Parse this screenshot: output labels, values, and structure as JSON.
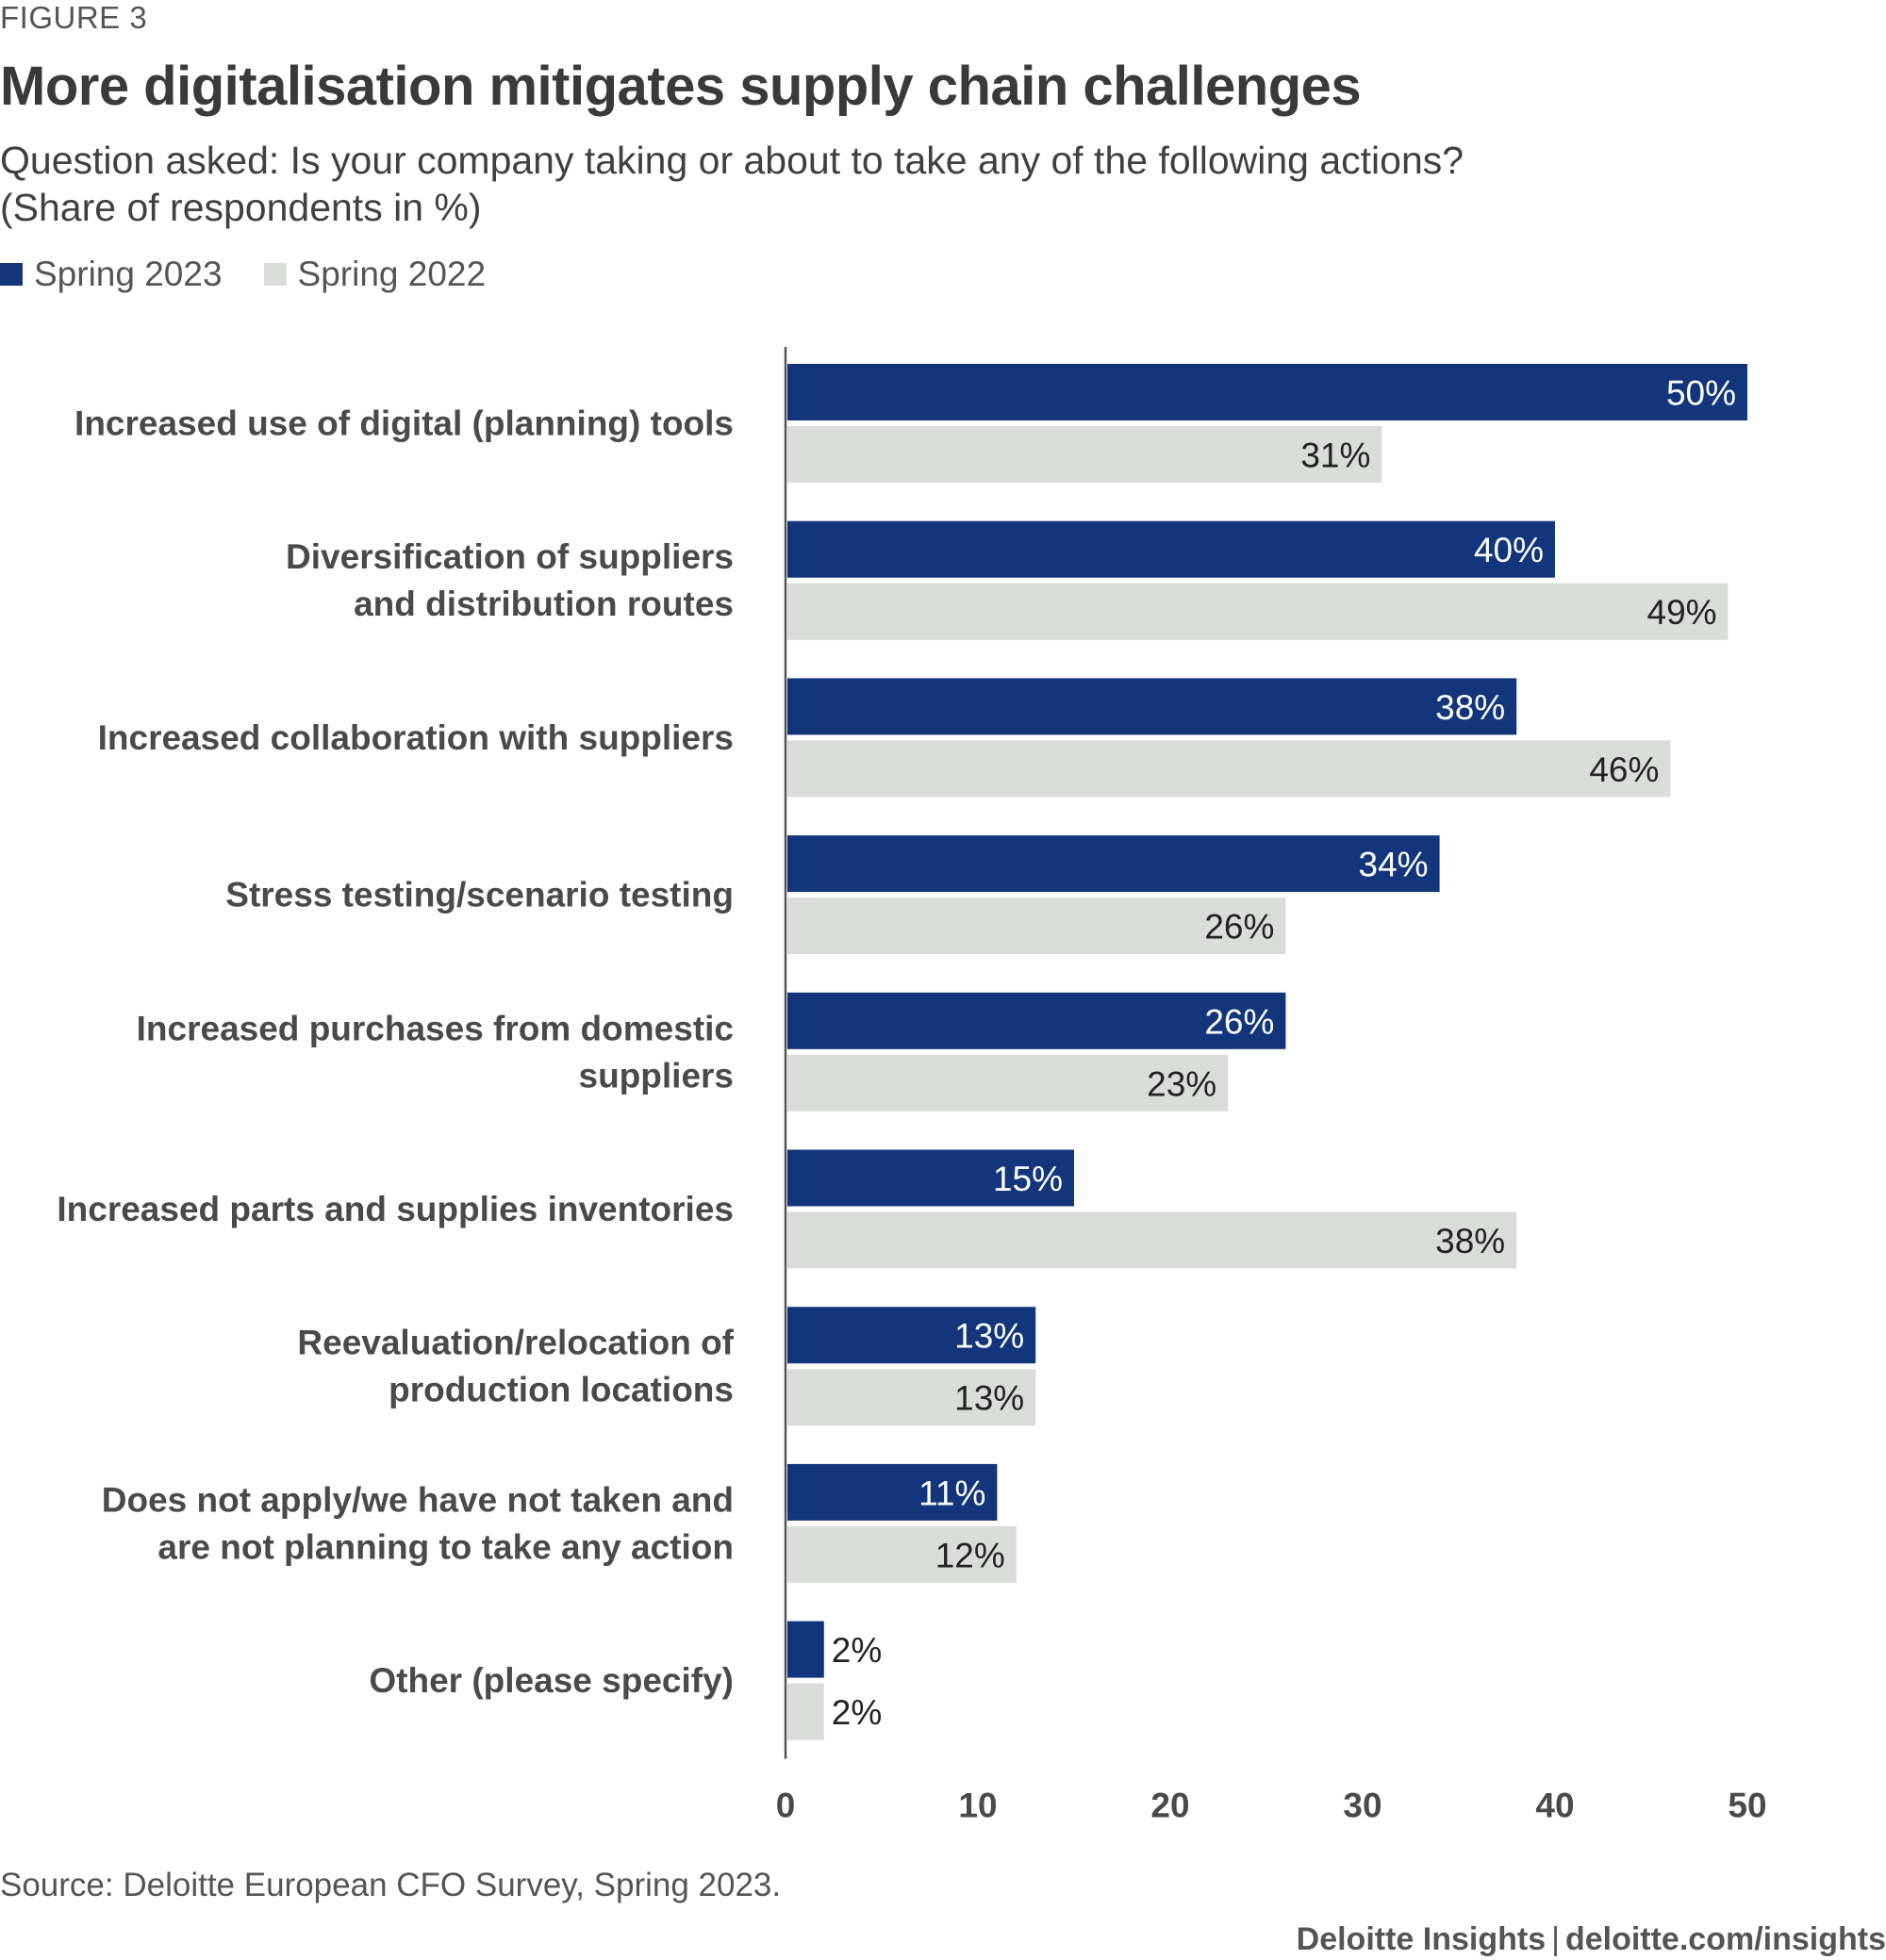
{
  "figure_label": "FIGURE 3",
  "title": "More digitalisation mitigates supply chain challenges",
  "subtitle_lines": [
    "Question asked: Is your company taking or about to take any of the following actions?",
    "(Share of respondents in %)"
  ],
  "colors": {
    "series_2023": "#13357b",
    "series_2022": "#d9dcd9",
    "axis": "#555555"
  },
  "source": "Source: Deloitte European CFO Survey, Spring 2023.",
  "credit": {
    "brand": "Deloitte Insights",
    "separator": "|",
    "url": "deloitte.com/insights"
  },
  "chart_data": {
    "type": "bar",
    "orientation": "horizontal",
    "categories": [
      [
        "Increased use of digital (planning) tools"
      ],
      [
        "Diversification of suppliers",
        "and distribution routes"
      ],
      [
        "Increased collaboration with suppliers"
      ],
      [
        "Stress testing/scenario testing"
      ],
      [
        "Increased purchases from domestic",
        "suppliers"
      ],
      [
        "Increased parts and supplies inventories"
      ],
      [
        "Reevaluation/relocation of",
        "production locations"
      ],
      [
        "Does not apply/we have not taken and",
        "are not planning to take any action"
      ],
      [
        "Other (please specify)"
      ]
    ],
    "series": [
      {
        "name": "Spring 2023",
        "values": [
          50,
          40,
          38,
          34,
          26,
          15,
          13,
          11,
          2
        ]
      },
      {
        "name": "Spring 2022",
        "values": [
          31,
          49,
          46,
          26,
          23,
          38,
          13,
          12,
          2
        ]
      }
    ],
    "value_suffix": "%",
    "xlim": [
      0,
      50
    ],
    "xticks": [
      0,
      10,
      20,
      30,
      40,
      50
    ],
    "legend_position": "top-left",
    "grid": false
  }
}
